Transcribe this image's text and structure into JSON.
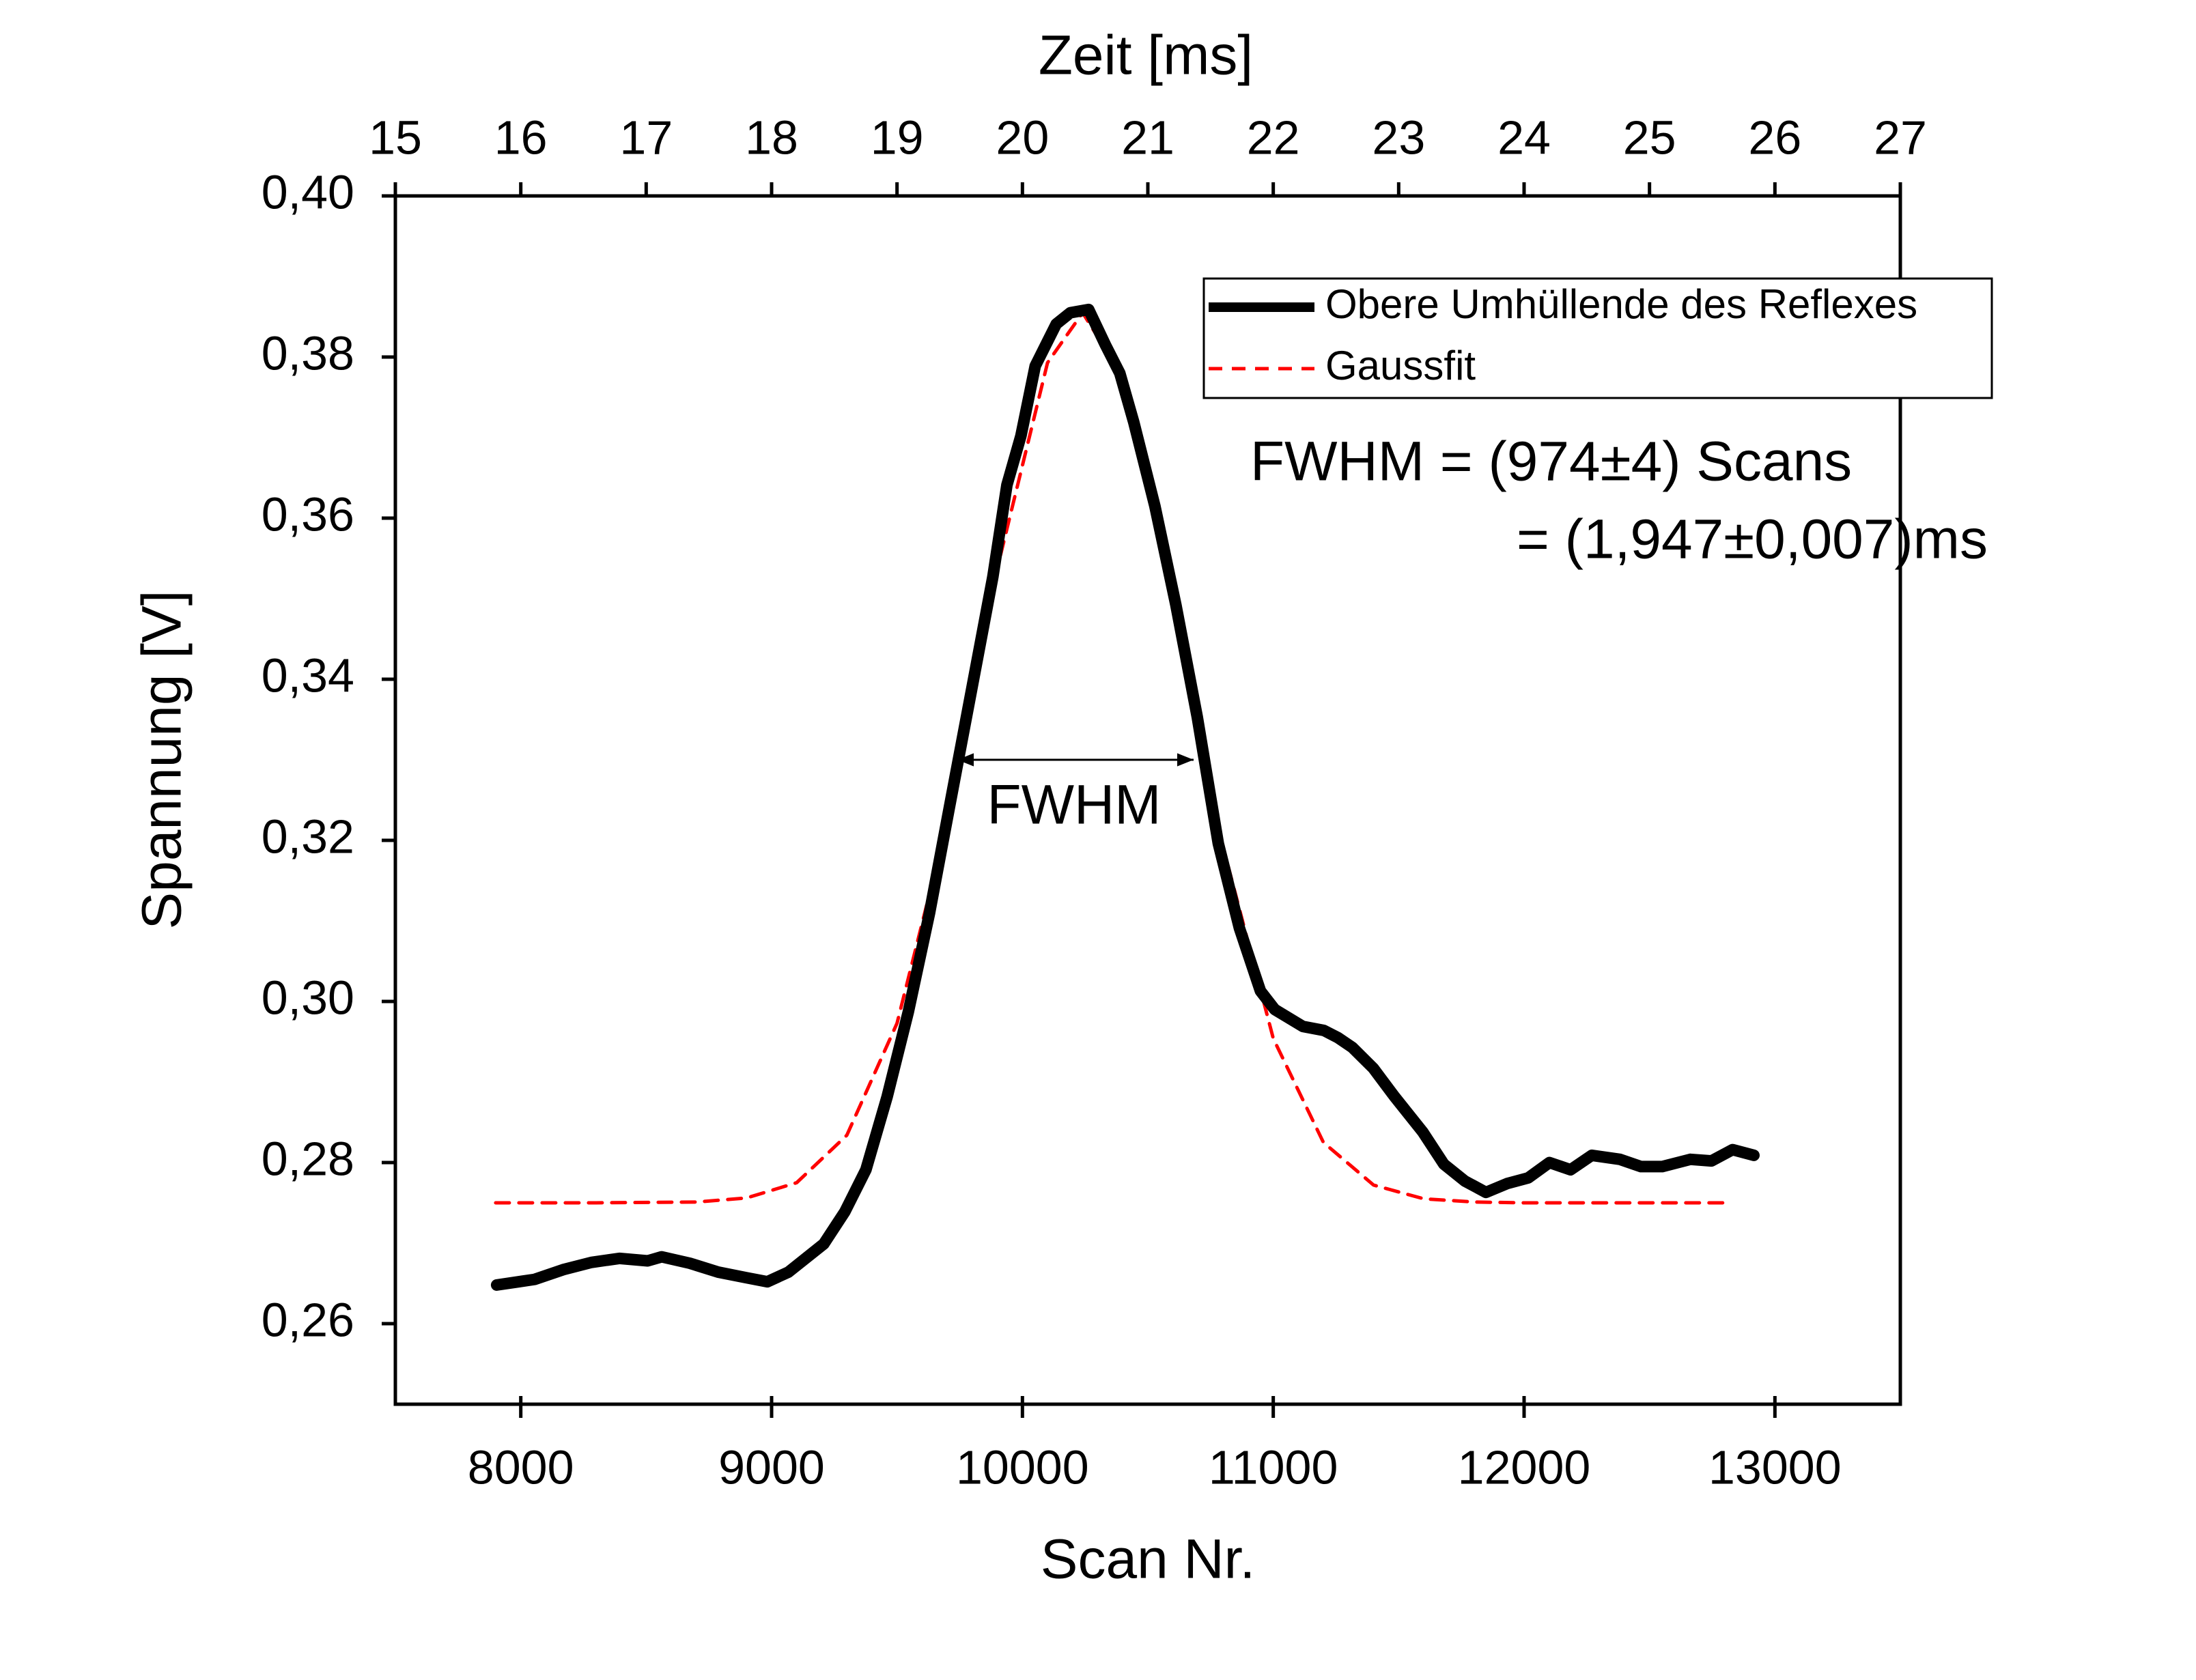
{
  "chart_data": {
    "type": "line",
    "xlabel": "Scan Nr.",
    "ylabel": "Spannung [V]",
    "x2label": "Zeit [ms]",
    "xlim": [
      7500,
      13500
    ],
    "xticks": [
      8000,
      9000,
      10000,
      11000,
      12000,
      13000
    ],
    "ylim": [
      0.25,
      0.4
    ],
    "yticks": [
      {
        "value": 0.26,
        "label": "0,26"
      },
      {
        "value": 0.28,
        "label": "0,28"
      },
      {
        "value": 0.3,
        "label": "0,30"
      },
      {
        "value": 0.32,
        "label": "0,32"
      },
      {
        "value": 0.34,
        "label": "0,34"
      },
      {
        "value": 0.36,
        "label": "0,36"
      },
      {
        "value": 0.38,
        "label": "0,38"
      },
      {
        "value": 0.4,
        "label": "0,40"
      }
    ],
    "x2lim": [
      15,
      27
    ],
    "x2ticks": [
      15,
      16,
      17,
      18,
      19,
      20,
      21,
      22,
      23,
      24,
      25,
      26,
      27
    ],
    "grid": false,
    "legend": "top-right",
    "annotations": [
      "FWHM",
      "FWHM = (974±4) Scans",
      "= (1,947±0,007)ms"
    ],
    "series": [
      {
        "name": "Obere Umhüllende des Reflexes",
        "color": "#000000",
        "style": "solid",
        "x": [
          7904,
          8056,
          8169,
          8281,
          8393,
          8506,
          8562,
          8674,
          8787,
          8899,
          8983,
          9067,
          9208,
          9292,
          9376,
          9461,
          9545,
          9629,
          9713,
          9798,
          9882,
          9938,
          9994,
          10051,
          10135,
          10191,
          10264,
          10331,
          10388,
          10444,
          10528,
          10612,
          10697,
          10781,
          10865,
          10949,
          11006,
          11118,
          11202,
          11258,
          11315,
          11399,
          11483,
          11596,
          11680,
          11764,
          11848,
          11933,
          12017,
          12101,
          12185,
          12270,
          12382,
          12466,
          12551,
          12663,
          12747,
          12831,
          12916
        ],
        "values": [
          0.2648,
          0.2655,
          0.2667,
          0.2676,
          0.2681,
          0.2678,
          0.2683,
          0.2675,
          0.2664,
          0.2657,
          0.2652,
          0.2664,
          0.2699,
          0.2739,
          0.2791,
          0.2882,
          0.2987,
          0.3109,
          0.3248,
          0.3388,
          0.3527,
          0.3641,
          0.3702,
          0.3789,
          0.3841,
          0.3855,
          0.3859,
          0.3815,
          0.378,
          0.3719,
          0.3615,
          0.3492,
          0.3353,
          0.3196,
          0.3091,
          0.3013,
          0.299,
          0.2969,
          0.2964,
          0.2955,
          0.2943,
          0.2917,
          0.2882,
          0.2838,
          0.2798,
          0.2777,
          0.2763,
          0.2774,
          0.2781,
          0.28,
          0.2791,
          0.2809,
          0.2804,
          0.2795,
          0.2795,
          0.2804,
          0.2802,
          0.2816,
          0.2809
        ]
      },
      {
        "name": "Gaussfit",
        "color": "#ff0000",
        "style": "dashed",
        "x": [
          7900,
          8300,
          8700,
          8900,
          9100,
          9300,
          9500,
          9700,
          9900,
          10100,
          10240,
          10400,
          10600,
          10800,
          11000,
          11200,
          11400,
          11600,
          11800,
          12000,
          12400,
          12800
        ],
        "values": [
          0.275,
          0.275,
          0.2751,
          0.2756,
          0.2775,
          0.2834,
          0.2973,
          0.3221,
          0.3538,
          0.3793,
          0.3855,
          0.3775,
          0.3507,
          0.3192,
          0.2954,
          0.2825,
          0.2772,
          0.2755,
          0.2751,
          0.275,
          0.275,
          0.275
        ]
      }
    ]
  }
}
